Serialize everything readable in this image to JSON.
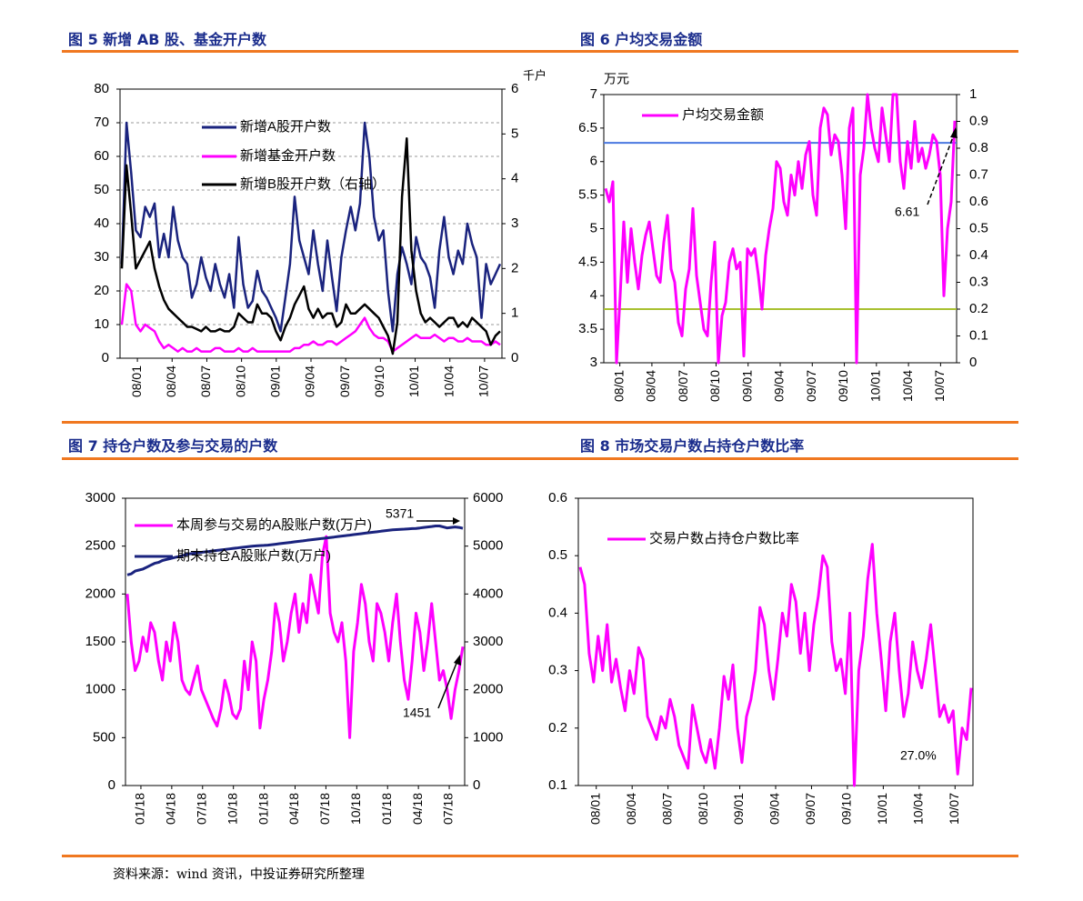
{
  "figures": {
    "fig5_title": "图 5   新增 AB 股、基金开户数",
    "fig6_title": "图 6  户均交易金额",
    "fig7_title": "图 7   持仓户数及参与交易的户数",
    "fig8_title": "图 8  市场交易户数占持仓户数比率"
  },
  "source": "资料来源：wind 资讯，中投证券研究所整理",
  "colors": {
    "navy": "#1a237e",
    "magenta": "#ff00ff",
    "black": "#000000",
    "blue_ref": "#4a78e0",
    "green_ref": "#a8c030",
    "accent": "#f07820"
  },
  "chart_data": [
    {
      "id": "fig5",
      "type": "line",
      "title": "新增 AB 股、基金开户数",
      "ylim": [
        0,
        80
      ],
      "yticks": [
        "80",
        "70",
        "60",
        "50",
        "40",
        "30",
        "20",
        "10",
        "0"
      ],
      "y2lim": [
        0,
        6
      ],
      "y2ticks": [
        "6",
        "5",
        "4",
        "3",
        "2",
        "1",
        "0"
      ],
      "y2unit": "千户",
      "xticks": [
        "08/01",
        "08/04",
        "08/07",
        "08/10",
        "09/01",
        "09/04",
        "09/07",
        "09/10",
        "10/01",
        "10/04",
        "10/07"
      ],
      "series": [
        {
          "name": "新增A股开户数",
          "axis": "left",
          "color": "#1a237e",
          "values": [
            28,
            70,
            55,
            38,
            36,
            45,
            42,
            46,
            30,
            37,
            30,
            45,
            35,
            30,
            28,
            18,
            22,
            30,
            24,
            20,
            28,
            22,
            18,
            25,
            15,
            36,
            22,
            15,
            17,
            26,
            20,
            18,
            15,
            12,
            8,
            18,
            28,
            48,
            35,
            30,
            25,
            38,
            28,
            20,
            35,
            24,
            14,
            30,
            38,
            45,
            38,
            46,
            70,
            60,
            42,
            35,
            38,
            20,
            8,
            25,
            33,
            28,
            22,
            36,
            30,
            28,
            24,
            15,
            32,
            42,
            30,
            25,
            32,
            28,
            40,
            34,
            30,
            12,
            28,
            22,
            25,
            28
          ]
        },
        {
          "name": "新增基金开户数",
          "axis": "left",
          "color": "#ff00ff",
          "values": [
            10,
            22,
            20,
            10,
            8,
            10,
            9,
            8,
            5,
            3,
            4,
            3,
            2,
            3,
            2,
            2,
            3,
            2,
            2,
            2,
            3,
            3,
            2,
            2,
            2,
            3,
            2,
            2,
            3,
            2,
            2,
            2,
            2,
            2,
            2,
            2,
            2,
            3,
            3,
            4,
            4,
            5,
            4,
            4,
            5,
            5,
            4,
            5,
            6,
            7,
            8,
            10,
            12,
            9,
            7,
            6,
            6,
            5,
            2,
            3,
            4,
            5,
            6,
            7,
            6,
            6,
            6,
            7,
            6,
            5,
            6,
            6,
            5,
            5,
            6,
            5,
            5,
            5,
            4,
            4,
            5,
            4
          ]
        },
        {
          "name": "新增B股开户数（右轴）",
          "axis": "right",
          "color": "#000000",
          "values": [
            2,
            4.3,
            3.2,
            2,
            2.2,
            2.4,
            2.6,
            2,
            1.6,
            1.3,
            1.1,
            1,
            0.9,
            0.8,
            0.7,
            0.7,
            0.65,
            0.6,
            0.7,
            0.6,
            0.6,
            0.65,
            0.6,
            0.6,
            0.7,
            1,
            0.9,
            0.8,
            0.8,
            1.2,
            1,
            1,
            0.9,
            0.6,
            0.4,
            0.7,
            0.9,
            1.2,
            1.4,
            1.6,
            1.1,
            0.9,
            1.1,
            0.9,
            1,
            1,
            0.7,
            0.8,
            1.2,
            1,
            1,
            1.1,
            1.2,
            1.1,
            1,
            0.9,
            0.7,
            0.5,
            0.1,
            0.8,
            3.6,
            4.9,
            2.4,
            1.5,
            1,
            0.8,
            0.9,
            0.8,
            0.7,
            0.8,
            0.9,
            0.9,
            0.7,
            0.8,
            0.7,
            0.9,
            0.8,
            0.7,
            0.6,
            0.3,
            0.5,
            0.6
          ]
        }
      ]
    },
    {
      "id": "fig6",
      "type": "line",
      "title": "户均交易金额",
      "ylim": [
        3,
        7
      ],
      "yticks": [
        "7",
        "6.5",
        "6",
        "5.5",
        "5",
        "4.5",
        "4",
        "3.5",
        "3"
      ],
      "yunit": "万元",
      "y2lim": [
        0,
        1
      ],
      "y2ticks": [
        "1",
        "0.9",
        "0.8",
        "0.7",
        "0.6",
        "0.5",
        "0.4",
        "0.3",
        "0.2",
        "0.1",
        "0"
      ],
      "xticks": [
        "08/01",
        "08/04",
        "08/07",
        "08/10",
        "09/01",
        "09/04",
        "09/07",
        "09/10",
        "10/01",
        "10/04",
        "10/07"
      ],
      "reference_lines": [
        6.28,
        3.8
      ],
      "annotation": "6.61",
      "series": [
        {
          "name": "户均交易金额",
          "color": "#ff00ff",
          "values": [
            5.6,
            5.4,
            5.7,
            3,
            4,
            5.1,
            4.2,
            5,
            4.5,
            4.1,
            4.6,
            4.9,
            5.1,
            4.7,
            4.3,
            4.2,
            4.8,
            5.2,
            4.4,
            4.2,
            3.6,
            3.4,
            4.1,
            4.4,
            5.3,
            4.3,
            3.9,
            3.5,
            3.4,
            4.2,
            4.8,
            3,
            3.7,
            3.9,
            4.5,
            4.7,
            4.4,
            4.5,
            3.1,
            4.7,
            4.6,
            4.7,
            4.3,
            3.8,
            4.6,
            5,
            5.3,
            6,
            5.9,
            5.4,
            5.2,
            5.8,
            5.5,
            6,
            5.6,
            6.1,
            6.3,
            5.5,
            5.2,
            6.5,
            6.8,
            6.7,
            6.1,
            6.4,
            6.3,
            5.8,
            5,
            6.5,
            6.8,
            3,
            5.8,
            6.2,
            7,
            6.5,
            6.2,
            6,
            6.8,
            6.4,
            6,
            7,
            7,
            6,
            5.6,
            6.3,
            5.9,
            6.6,
            6,
            6.2,
            5.9,
            6.1,
            6.4,
            6.3,
            5.8,
            4,
            5,
            5.4,
            6.61
          ]
        }
      ]
    },
    {
      "id": "fig7",
      "type": "line",
      "title": "持仓户数及参与交易的户数",
      "ylim": [
        0,
        3000
      ],
      "yticks": [
        "3000",
        "2500",
        "2000",
        "1500",
        "1000",
        "500",
        "0"
      ],
      "y2lim": [
        0,
        6000
      ],
      "y2ticks": [
        "6000",
        "5000",
        "4000",
        "3000",
        "2000",
        "1000",
        "0"
      ],
      "xticks": [
        "01/18",
        "04/18",
        "07/18",
        "10/18",
        "01/18",
        "04/18",
        "07/18",
        "10/18",
        "01/18",
        "04/18",
        "07/18"
      ],
      "annotations": [
        "5371",
        "1451"
      ],
      "series": [
        {
          "name": "本周参与交易的A股账户数(万户)",
          "axis": "left",
          "color": "#ff00ff",
          "values": [
            2000,
            1500,
            1200,
            1300,
            1550,
            1400,
            1700,
            1600,
            1300,
            1100,
            1500,
            1300,
            1700,
            1500,
            1100,
            1000,
            950,
            1100,
            1250,
            1000,
            900,
            800,
            700,
            620,
            800,
            1100,
            950,
            750,
            700,
            800,
            1300,
            1000,
            1500,
            1300,
            600,
            900,
            1100,
            1400,
            1900,
            1700,
            1300,
            1500,
            1800,
            2000,
            1600,
            1900,
            1700,
            2200,
            2000,
            1800,
            2400,
            2600,
            1800,
            1600,
            1500,
            1700,
            1300,
            500,
            1400,
            1700,
            2100,
            1900,
            1500,
            1300,
            1900,
            1800,
            1600,
            1300,
            1700,
            2000,
            1500,
            1100,
            900,
            1300,
            1800,
            1600,
            1200,
            1500,
            1900,
            1500,
            1100,
            1200,
            1000,
            700,
            1000,
            1200,
            1451
          ]
        },
        {
          "name": "期末持仓A股账户数(万户)",
          "axis": "right",
          "color": "#1a237e",
          "values": [
            4400,
            4420,
            4480,
            4500,
            4520,
            4560,
            4600,
            4640,
            4660,
            4700,
            4720,
            4740,
            4760,
            4780,
            4800,
            4820,
            4840,
            4850,
            4860,
            4870,
            4880,
            4890,
            4900,
            4910,
            4920,
            4930,
            4940,
            4950,
            4960,
            4970,
            4980,
            4990,
            5000,
            5005,
            5010,
            5015,
            5020,
            5030,
            5040,
            5050,
            5060,
            5070,
            5080,
            5090,
            5100,
            5110,
            5120,
            5130,
            5140,
            5150,
            5160,
            5170,
            5180,
            5190,
            5200,
            5210,
            5220,
            5230,
            5240,
            5250,
            5260,
            5270,
            5280,
            5290,
            5300,
            5310,
            5320,
            5330,
            5340,
            5345,
            5350,
            5355,
            5360,
            5365,
            5370,
            5380,
            5390,
            5400,
            5410,
            5420,
            5420,
            5400,
            5380,
            5390,
            5400,
            5390,
            5371
          ]
        }
      ]
    },
    {
      "id": "fig8",
      "type": "line",
      "title": "市场交易户数占持仓户数比率",
      "ylim": [
        0.1,
        0.6
      ],
      "yticks": [
        "0.6",
        "0.5",
        "0.4",
        "0.3",
        "0.2",
        "0.1"
      ],
      "xticks": [
        "08/01",
        "08/04",
        "08/07",
        "08/10",
        "09/01",
        "09/04",
        "09/07",
        "09/10",
        "10/01",
        "10/04",
        "10/07"
      ],
      "annotation": "27.0%",
      "series": [
        {
          "name": "交易户数占持仓户数比率",
          "color": "#ff00ff",
          "values": [
            0.48,
            0.45,
            0.33,
            0.28,
            0.36,
            0.3,
            0.38,
            0.28,
            0.32,
            0.27,
            0.23,
            0.3,
            0.26,
            0.34,
            0.32,
            0.22,
            0.2,
            0.18,
            0.22,
            0.2,
            0.25,
            0.22,
            0.17,
            0.15,
            0.13,
            0.24,
            0.2,
            0.16,
            0.14,
            0.18,
            0.13,
            0.2,
            0.29,
            0.25,
            0.31,
            0.2,
            0.14,
            0.22,
            0.25,
            0.3,
            0.41,
            0.38,
            0.3,
            0.25,
            0.32,
            0.4,
            0.36,
            0.45,
            0.42,
            0.33,
            0.4,
            0.3,
            0.38,
            0.43,
            0.5,
            0.48,
            0.35,
            0.3,
            0.32,
            0.26,
            0.4,
            0.1,
            0.3,
            0.36,
            0.46,
            0.52,
            0.4,
            0.32,
            0.23,
            0.35,
            0.4,
            0.3,
            0.22,
            0.26,
            0.35,
            0.3,
            0.27,
            0.32,
            0.38,
            0.3,
            0.22,
            0.24,
            0.21,
            0.23,
            0.12,
            0.2,
            0.18,
            0.27
          ]
        }
      ]
    }
  ]
}
